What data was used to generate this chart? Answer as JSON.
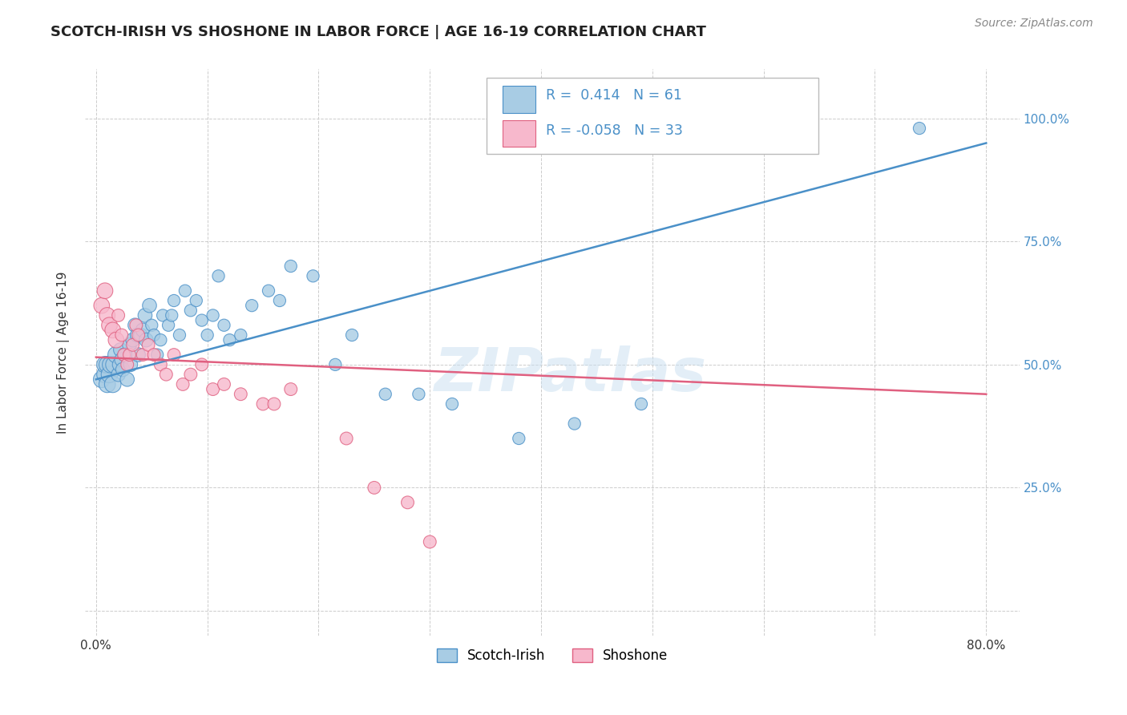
{
  "title": "SCOTCH-IRISH VS SHOSHONE IN LABOR FORCE | AGE 16-19 CORRELATION CHART",
  "source": "Source: ZipAtlas.com",
  "ylabel": "In Labor Force | Age 16-19",
  "xlim": [
    -0.01,
    0.83
  ],
  "ylim": [
    -0.05,
    1.1
  ],
  "legend_label_1": "Scotch-Irish",
  "legend_label_2": "Shoshone",
  "R1": 0.414,
  "N1": 61,
  "R2": -0.058,
  "N2": 33,
  "color_blue": "#a8cce4",
  "color_blue_edge": "#4a90c8",
  "color_blue_line": "#4a90c8",
  "color_pink": "#f7b8cc",
  "color_pink_edge": "#e06080",
  "color_pink_line": "#e06080",
  "watermark": "ZIPatlas",
  "blue_line_x0": 0.0,
  "blue_line_y0": 0.47,
  "blue_line_x1": 0.8,
  "blue_line_y1": 0.95,
  "pink_line_x0": 0.0,
  "pink_line_y0": 0.515,
  "pink_line_x1": 0.8,
  "pink_line_y1": 0.44,
  "scotch_irish_x": [
    0.005,
    0.008,
    0.008,
    0.01,
    0.01,
    0.012,
    0.013,
    0.015,
    0.016,
    0.018,
    0.02,
    0.021,
    0.022,
    0.023,
    0.024,
    0.026,
    0.028,
    0.03,
    0.031,
    0.033,
    0.035,
    0.037,
    0.038,
    0.04,
    0.042,
    0.044,
    0.045,
    0.048,
    0.05,
    0.052,
    0.055,
    0.058,
    0.06,
    0.065,
    0.068,
    0.07,
    0.075,
    0.08,
    0.085,
    0.09,
    0.095,
    0.1,
    0.105,
    0.11,
    0.115,
    0.12,
    0.13,
    0.14,
    0.155,
    0.165,
    0.175,
    0.195,
    0.215,
    0.23,
    0.26,
    0.29,
    0.32,
    0.38,
    0.43,
    0.49,
    0.74
  ],
  "scotch_irish_y": [
    0.47,
    0.48,
    0.5,
    0.5,
    0.46,
    0.48,
    0.5,
    0.46,
    0.5,
    0.52,
    0.48,
    0.5,
    0.53,
    0.51,
    0.49,
    0.52,
    0.47,
    0.54,
    0.5,
    0.55,
    0.58,
    0.56,
    0.52,
    0.56,
    0.57,
    0.6,
    0.55,
    0.62,
    0.58,
    0.56,
    0.52,
    0.55,
    0.6,
    0.58,
    0.6,
    0.63,
    0.56,
    0.65,
    0.61,
    0.63,
    0.59,
    0.56,
    0.6,
    0.68,
    0.58,
    0.55,
    0.56,
    0.62,
    0.65,
    0.63,
    0.7,
    0.68,
    0.5,
    0.56,
    0.44,
    0.44,
    0.42,
    0.35,
    0.38,
    0.42,
    0.98
  ],
  "shoshone_x": [
    0.005,
    0.008,
    0.01,
    0.012,
    0.015,
    0.018,
    0.02,
    0.023,
    0.025,
    0.028,
    0.03,
    0.033,
    0.036,
    0.038,
    0.042,
    0.047,
    0.052,
    0.058,
    0.063,
    0.07,
    0.078,
    0.085,
    0.095,
    0.105,
    0.115,
    0.13,
    0.15,
    0.16,
    0.175,
    0.225,
    0.25,
    0.28,
    0.3
  ],
  "shoshone_y": [
    0.62,
    0.65,
    0.6,
    0.58,
    0.57,
    0.55,
    0.6,
    0.56,
    0.52,
    0.5,
    0.52,
    0.54,
    0.58,
    0.56,
    0.52,
    0.54,
    0.52,
    0.5,
    0.48,
    0.52,
    0.46,
    0.48,
    0.5,
    0.45,
    0.46,
    0.44,
    0.42,
    0.42,
    0.45,
    0.35,
    0.25,
    0.22,
    0.14
  ]
}
